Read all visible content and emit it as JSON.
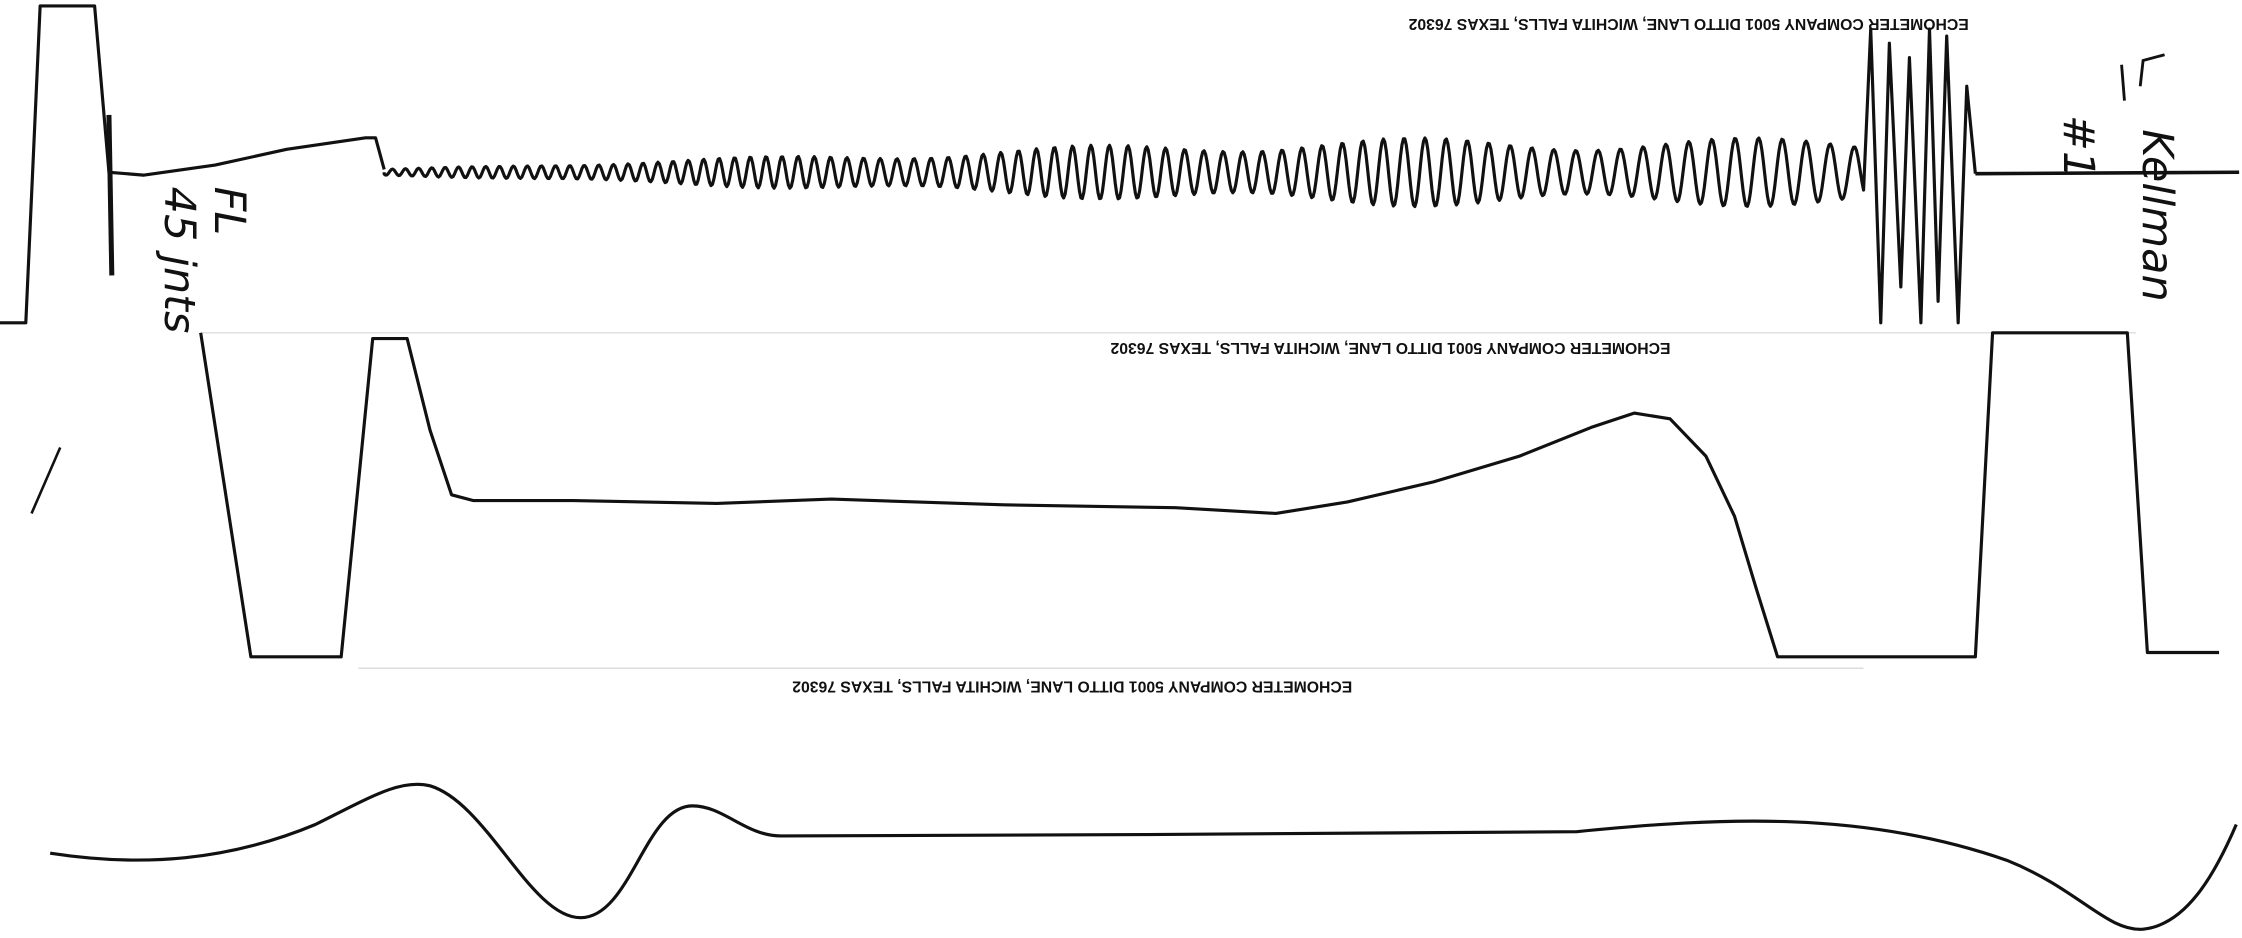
{
  "headers": [
    "ECHOMETER COMPANY   5001 DITTO LANE, WICHITA FALLS, TEXAS 76302",
    "ECHOMETER COMPANY   5001 DITTO LANE, WICHITA FALLS, TEXAS 76302",
    "ECHOMETER COMPANY   5001 DITTO LANE, WICHITA FALLS, TEXAS 76302"
  ],
  "annotations": {
    "fluid_level": "FL",
    "joints": "45 jnts",
    "well_name": "Kellman",
    "well_number": "#1"
  }
}
